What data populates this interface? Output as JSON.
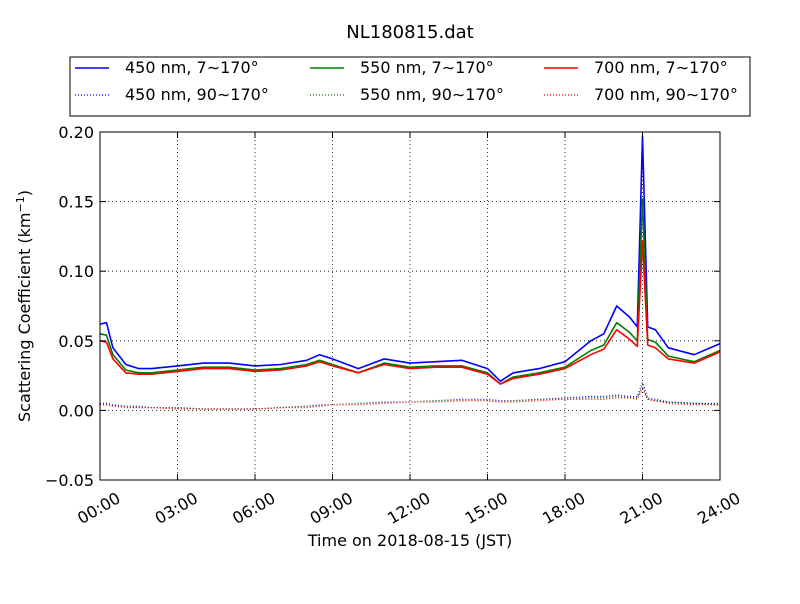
{
  "chart_data": {
    "type": "line",
    "title": "NL180815.dat",
    "xlabel": "Time on 2018-08-15 (JST)",
    "ylabel_main": "Scattering Coefficient (km",
    "ylabel_sup": "−1",
    "ylabel_end": ")",
    "xlim_hours": [
      0,
      24
    ],
    "ylim": [
      -0.05,
      0.2
    ],
    "x_ticks": [
      {
        "hour": 0,
        "label": "00:00"
      },
      {
        "hour": 3,
        "label": "03:00"
      },
      {
        "hour": 6,
        "label": "06:00"
      },
      {
        "hour": 9,
        "label": "09:00"
      },
      {
        "hour": 12,
        "label": "12:00"
      },
      {
        "hour": 15,
        "label": "15:00"
      },
      {
        "hour": 18,
        "label": "18:00"
      },
      {
        "hour": 21,
        "label": "21:00"
      },
      {
        "hour": 24,
        "label": "24:00"
      }
    ],
    "y_ticks": [
      {
        "value": 0.2,
        "label": "0.20"
      },
      {
        "value": 0.15,
        "label": "0.15"
      },
      {
        "value": 0.1,
        "label": "0.10"
      },
      {
        "value": 0.05,
        "label": "0.05"
      },
      {
        "value": 0.0,
        "label": "0.00"
      },
      {
        "value": -0.05,
        "label": "−0.05"
      }
    ],
    "grid": true,
    "legend_position": "top",
    "x_hours": [
      0,
      0.25,
      0.5,
      1,
      1.5,
      2,
      3,
      4,
      5,
      6,
      7,
      8,
      8.5,
      9,
      10,
      11,
      12,
      13,
      14,
      15,
      15.5,
      16,
      17,
      18,
      19,
      19.5,
      20,
      20.5,
      20.8,
      21,
      21.2,
      21.5,
      22,
      23,
      24
    ],
    "series": [
      {
        "name": "450 nm, 7∼170°",
        "color": "#0000ff",
        "style": "solid",
        "values": [
          0.062,
          0.063,
          0.045,
          0.033,
          0.03,
          0.03,
          0.032,
          0.034,
          0.034,
          0.032,
          0.033,
          0.036,
          0.04,
          0.037,
          0.03,
          0.037,
          0.034,
          0.035,
          0.036,
          0.03,
          0.021,
          0.027,
          0.03,
          0.035,
          0.05,
          0.055,
          0.075,
          0.067,
          0.06,
          0.197,
          0.06,
          0.058,
          0.045,
          0.04,
          0.048
        ]
      },
      {
        "name": "450 nm, 90∼170°",
        "color": "#0000ff",
        "style": "dotted",
        "values": [
          0.005,
          0.005,
          0.004,
          0.003,
          0.003,
          0.002,
          0.002,
          0.001,
          0.001,
          0.001,
          0.002,
          0.003,
          0.004,
          0.004,
          0.005,
          0.006,
          0.006,
          0.007,
          0.008,
          0.008,
          0.007,
          0.007,
          0.008,
          0.009,
          0.01,
          0.01,
          0.011,
          0.01,
          0.01,
          0.02,
          0.009,
          0.008,
          0.006,
          0.005,
          0.005
        ]
      },
      {
        "name": "550 nm, 7∼170°",
        "color": "#008000",
        "style": "solid",
        "values": [
          0.055,
          0.054,
          0.04,
          0.029,
          0.027,
          0.027,
          0.029,
          0.031,
          0.031,
          0.029,
          0.03,
          0.033,
          0.036,
          0.033,
          0.027,
          0.034,
          0.031,
          0.032,
          0.032,
          0.027,
          0.019,
          0.024,
          0.027,
          0.031,
          0.043,
          0.047,
          0.063,
          0.056,
          0.05,
          0.152,
          0.051,
          0.049,
          0.039,
          0.035,
          0.043
        ]
      },
      {
        "name": "550 nm, 90∼170°",
        "color": "#008000",
        "style": "dotted",
        "values": [
          0.004,
          0.004,
          0.003,
          0.003,
          0.002,
          0.002,
          0.002,
          0.001,
          0.001,
          0.001,
          0.002,
          0.003,
          0.003,
          0.004,
          0.005,
          0.005,
          0.006,
          0.007,
          0.007,
          0.007,
          0.006,
          0.007,
          0.008,
          0.008,
          0.009,
          0.009,
          0.01,
          0.009,
          0.009,
          0.017,
          0.008,
          0.007,
          0.006,
          0.005,
          0.004
        ]
      },
      {
        "name": "700 nm, 7∼170°",
        "color": "#ff0000",
        "style": "solid",
        "values": [
          0.05,
          0.049,
          0.037,
          0.027,
          0.026,
          0.026,
          0.028,
          0.03,
          0.03,
          0.028,
          0.029,
          0.032,
          0.035,
          0.032,
          0.027,
          0.033,
          0.03,
          0.031,
          0.031,
          0.026,
          0.019,
          0.023,
          0.026,
          0.03,
          0.04,
          0.044,
          0.058,
          0.051,
          0.046,
          0.122,
          0.047,
          0.045,
          0.037,
          0.034,
          0.042
        ]
      },
      {
        "name": "700 nm, 90∼170°",
        "color": "#ff0000",
        "style": "dotted",
        "values": [
          0.004,
          0.004,
          0.003,
          0.002,
          0.002,
          0.002,
          0.001,
          0.001,
          0.001,
          0.001,
          0.002,
          0.002,
          0.003,
          0.004,
          0.004,
          0.005,
          0.006,
          0.006,
          0.007,
          0.007,
          0.006,
          0.006,
          0.007,
          0.008,
          0.008,
          0.008,
          0.009,
          0.009,
          0.008,
          0.015,
          0.008,
          0.007,
          0.005,
          0.004,
          0.004
        ]
      }
    ]
  }
}
